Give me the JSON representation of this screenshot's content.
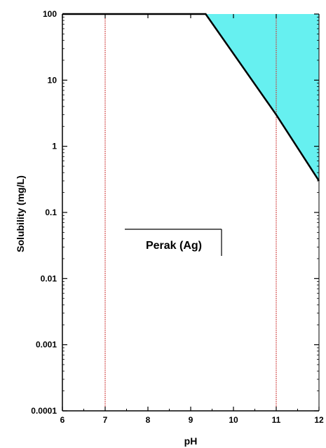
{
  "chart_data": {
    "type": "area",
    "title": "",
    "xlabel": "pH",
    "ylabel": "Solubility (mg/L)",
    "xlim": [
      6,
      12
    ],
    "ylim": [
      0.0001,
      100
    ],
    "yscale": "log",
    "x_ticks": [
      6,
      7,
      8,
      9,
      10,
      11,
      12
    ],
    "x_tick_labels": [
      "6",
      "7",
      "8",
      "9",
      "10",
      "11",
      "12"
    ],
    "y_ticks": [
      0.0001,
      0.001,
      0.01,
      0.1,
      1,
      10,
      100
    ],
    "y_tick_labels": [
      "0.0001",
      "0.001",
      "0.01",
      "0.1",
      "1",
      "10",
      "100"
    ],
    "grid": false,
    "series": [
      {
        "name": "Perak (Ag)",
        "x": [
          6,
          9.35,
          11,
          12
        ],
        "y": [
          100,
          100,
          3,
          0.3
        ],
        "color": "#000000",
        "fill_color": "#66f0f0"
      }
    ],
    "reference_lines": [
      {
        "x": 7,
        "color": "#cc3333"
      },
      {
        "x": 11,
        "color": "#cc3333"
      }
    ],
    "legend": {
      "label": "Perak (Ag)",
      "placement": "center-left"
    }
  }
}
